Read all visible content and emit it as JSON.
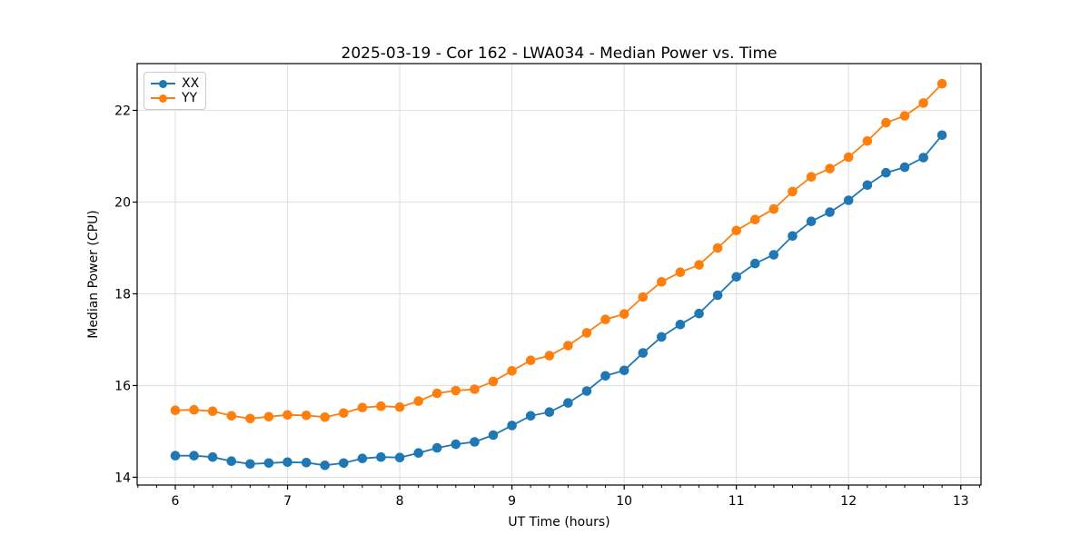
{
  "chart_data": {
    "type": "line",
    "title": "2025-03-19 - Cor 162 - LWA034 - Median Power vs. Time",
    "xlabel": "UT Time (hours)",
    "ylabel": "Median Power (CPU)",
    "xlim": [
      5.66,
      13.18
    ],
    "ylim": [
      13.83,
      23.02
    ],
    "xticks": [
      6,
      7,
      8,
      9,
      10,
      11,
      12,
      13
    ],
    "yticks": [
      14,
      16,
      18,
      20,
      22
    ],
    "x_minor_tick_step_hours": 0.1667,
    "grid": "major-only",
    "grid_color": "#e0e0e0",
    "spine_color": "#000000",
    "legend_position": "upper-left",
    "x_hours": [
      6.0,
      6.167,
      6.333,
      6.5,
      6.667,
      6.833,
      7.0,
      7.167,
      7.333,
      7.5,
      7.667,
      7.833,
      8.0,
      8.167,
      8.333,
      8.5,
      8.667,
      8.833,
      9.0,
      9.167,
      9.333,
      9.5,
      9.667,
      9.833,
      10.0,
      10.167,
      10.333,
      10.5,
      10.667,
      10.833,
      11.0,
      11.167,
      11.333,
      11.5,
      11.667,
      11.833,
      12.0,
      12.167,
      12.333,
      12.5,
      12.667,
      12.833
    ],
    "series": [
      {
        "name": "XX",
        "color": "#1f77b4",
        "values": [
          14.47,
          14.47,
          14.44,
          14.35,
          14.29,
          14.31,
          14.33,
          14.32,
          14.26,
          14.31,
          14.41,
          14.44,
          14.43,
          14.53,
          14.64,
          14.72,
          14.77,
          14.92,
          15.13,
          15.34,
          15.42,
          15.62,
          15.88,
          16.21,
          16.33,
          16.71,
          17.06,
          17.33,
          17.57,
          17.97,
          18.37,
          18.66,
          18.85,
          19.26,
          19.58,
          19.78,
          20.04,
          20.37,
          20.64,
          20.76,
          20.97,
          21.46
        ]
      },
      {
        "name": "YY",
        "color": "#ff7f0e",
        "values": [
          15.46,
          15.47,
          15.44,
          15.34,
          15.28,
          15.32,
          15.36,
          15.35,
          15.31,
          15.4,
          15.52,
          15.55,
          15.53,
          15.66,
          15.83,
          15.89,
          15.92,
          16.09,
          16.32,
          16.55,
          16.65,
          16.87,
          17.15,
          17.44,
          17.56,
          17.93,
          18.26,
          18.47,
          18.63,
          19.0,
          19.38,
          19.62,
          19.85,
          20.23,
          20.55,
          20.73,
          20.98,
          21.33,
          21.73,
          21.88,
          22.16,
          22.58
        ]
      }
    ]
  }
}
